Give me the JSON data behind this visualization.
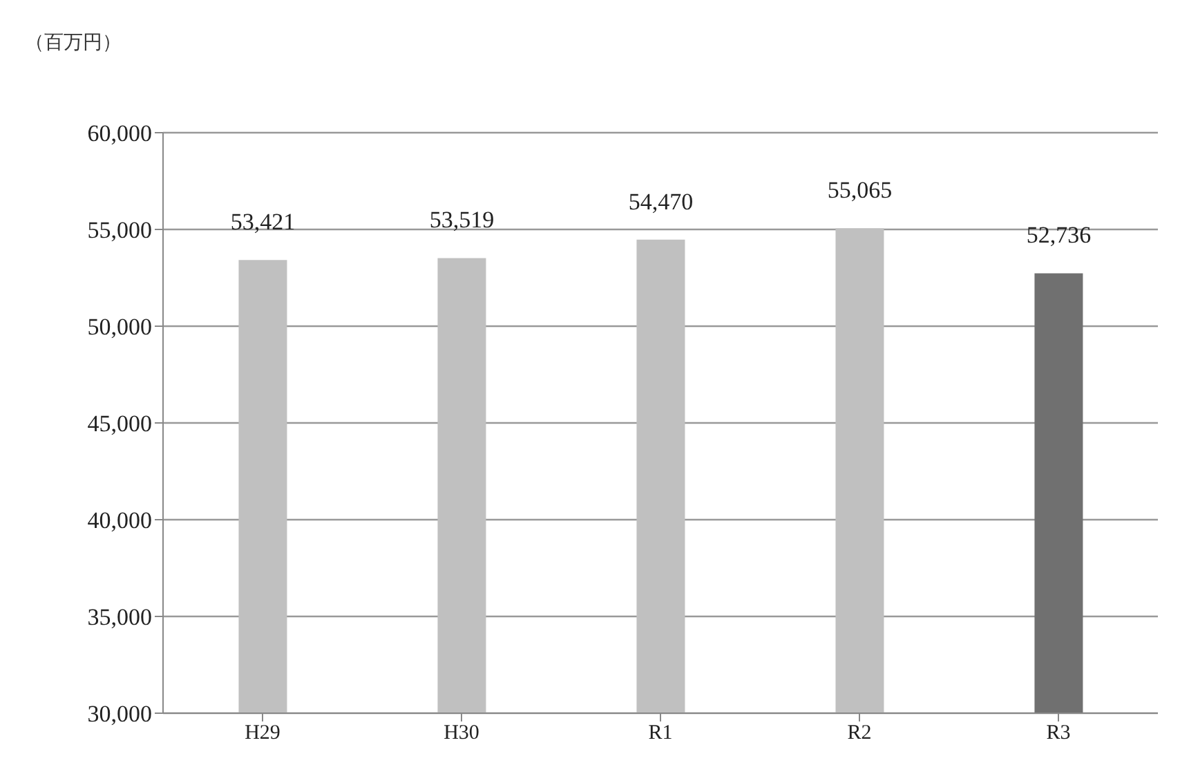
{
  "chart_data": {
    "type": "bar",
    "ylabel": "（百万円）",
    "categories": [
      "H29",
      "H30",
      "R1",
      "R2",
      "R3"
    ],
    "values": [
      53421,
      53519,
      54470,
      55065,
      52736
    ],
    "colors": [
      "#c0c0c0",
      "#c0c0c0",
      "#c0c0c0",
      "#c0c0c0",
      "#707070"
    ],
    "value_labels": [
      "53,421",
      "53,519",
      "54,470",
      "55,065",
      "52,736"
    ],
    "ylim": [
      30000,
      60000
    ],
    "yticks": [
      {
        "value": 30000,
        "label": "30,000"
      },
      {
        "value": 35000,
        "label": "35,000"
      },
      {
        "value": 40000,
        "label": "40,000"
      },
      {
        "value": 45000,
        "label": "45,000"
      },
      {
        "value": 50000,
        "label": "50,000"
      },
      {
        "value": 55000,
        "label": "55,000"
      },
      {
        "value": 60000,
        "label": "60,000"
      }
    ],
    "grid": "y"
  }
}
